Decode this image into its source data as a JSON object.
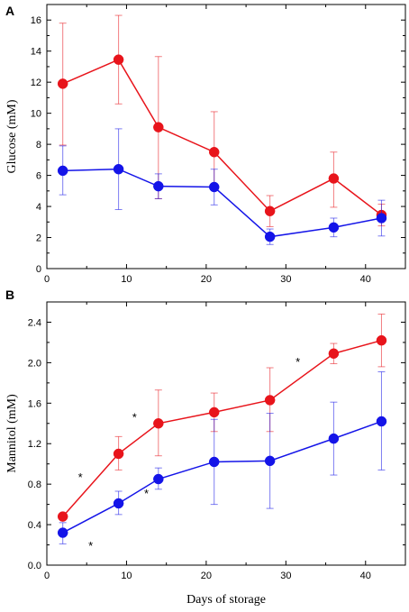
{
  "chart_data": [
    {
      "type": "line",
      "panel_label": "A",
      "title": "",
      "xlabel": "",
      "ylabel": "Glucose (mM)",
      "xlim": [
        0,
        45
      ],
      "ylim": [
        0,
        17
      ],
      "xticks": [
        0,
        10,
        20,
        30,
        40
      ],
      "yticks": [
        0,
        2,
        4,
        6,
        8,
        10,
        12,
        14,
        16
      ],
      "ytick_labels": [
        "0",
        "2",
        "4",
        "6",
        "8",
        "10",
        "12",
        "14",
        "16"
      ],
      "x": [
        2,
        9,
        14,
        21,
        28,
        36,
        42
      ],
      "series": [
        {
          "color": "#e8141b",
          "values": [
            11.9,
            13.45,
            9.1,
            7.5,
            3.7,
            5.8,
            3.45
          ],
          "err_upper": [
            15.8,
            16.3,
            13.65,
            10.1,
            4.7,
            7.5,
            4.15
          ],
          "err_lower": [
            7.95,
            10.6,
            4.5,
            5.2,
            2.7,
            3.95,
            2.75
          ]
        },
        {
          "color": "#1414e8",
          "values": [
            6.3,
            6.4,
            5.3,
            5.25,
            2.05,
            2.65,
            3.25
          ],
          "err_upper": [
            7.9,
            9.0,
            6.1,
            6.4,
            2.55,
            3.25,
            4.4
          ],
          "err_lower": [
            4.75,
            3.8,
            4.5,
            4.1,
            1.55,
            2.05,
            2.1
          ]
        }
      ],
      "annotations": []
    },
    {
      "type": "line",
      "panel_label": "B",
      "title": "",
      "xlabel": "Days of storage",
      "ylabel": "Mannitol (mM)",
      "xlim": [
        0,
        45
      ],
      "ylim": [
        0,
        2.6
      ],
      "xticks": [
        0,
        10,
        20,
        30,
        40
      ],
      "yticks": [
        0,
        0.4,
        0.8,
        1.2,
        1.6,
        2.0,
        2.4
      ],
      "ytick_labels": [
        "0.0",
        "0.4",
        "0.8",
        "1.2",
        "1.6",
        "2.0",
        "2.4"
      ],
      "x": [
        2,
        9,
        14,
        21,
        28,
        36,
        42
      ],
      "series": [
        {
          "color": "#e8141b",
          "values": [
            0.48,
            1.1,
            1.4,
            1.51,
            1.63,
            2.09,
            2.22
          ],
          "err_upper": [
            0.48,
            1.27,
            1.73,
            1.7,
            1.95,
            2.19,
            2.48
          ],
          "err_lower": [
            0.48,
            0.94,
            1.08,
            1.32,
            1.32,
            1.99,
            1.96
          ]
        },
        {
          "color": "#1414e8",
          "values": [
            0.32,
            0.61,
            0.85,
            1.02,
            1.03,
            1.25,
            1.42
          ],
          "err_upper": [
            0.42,
            0.73,
            0.96,
            1.44,
            1.5,
            1.61,
            1.91
          ],
          "err_lower": [
            0.21,
            0.5,
            0.75,
            0.6,
            0.56,
            0.89,
            0.94
          ]
        }
      ],
      "annotations": [
        {
          "text": "*",
          "x": 4.2,
          "y": 0.83
        },
        {
          "text": "*",
          "x": 5.5,
          "y": 0.15
        },
        {
          "text": "*",
          "x": 11.0,
          "y": 1.42
        },
        {
          "text": "*",
          "x": 12.5,
          "y": 0.67
        },
        {
          "text": "*",
          "x": 31.5,
          "y": 1.97
        }
      ]
    }
  ]
}
